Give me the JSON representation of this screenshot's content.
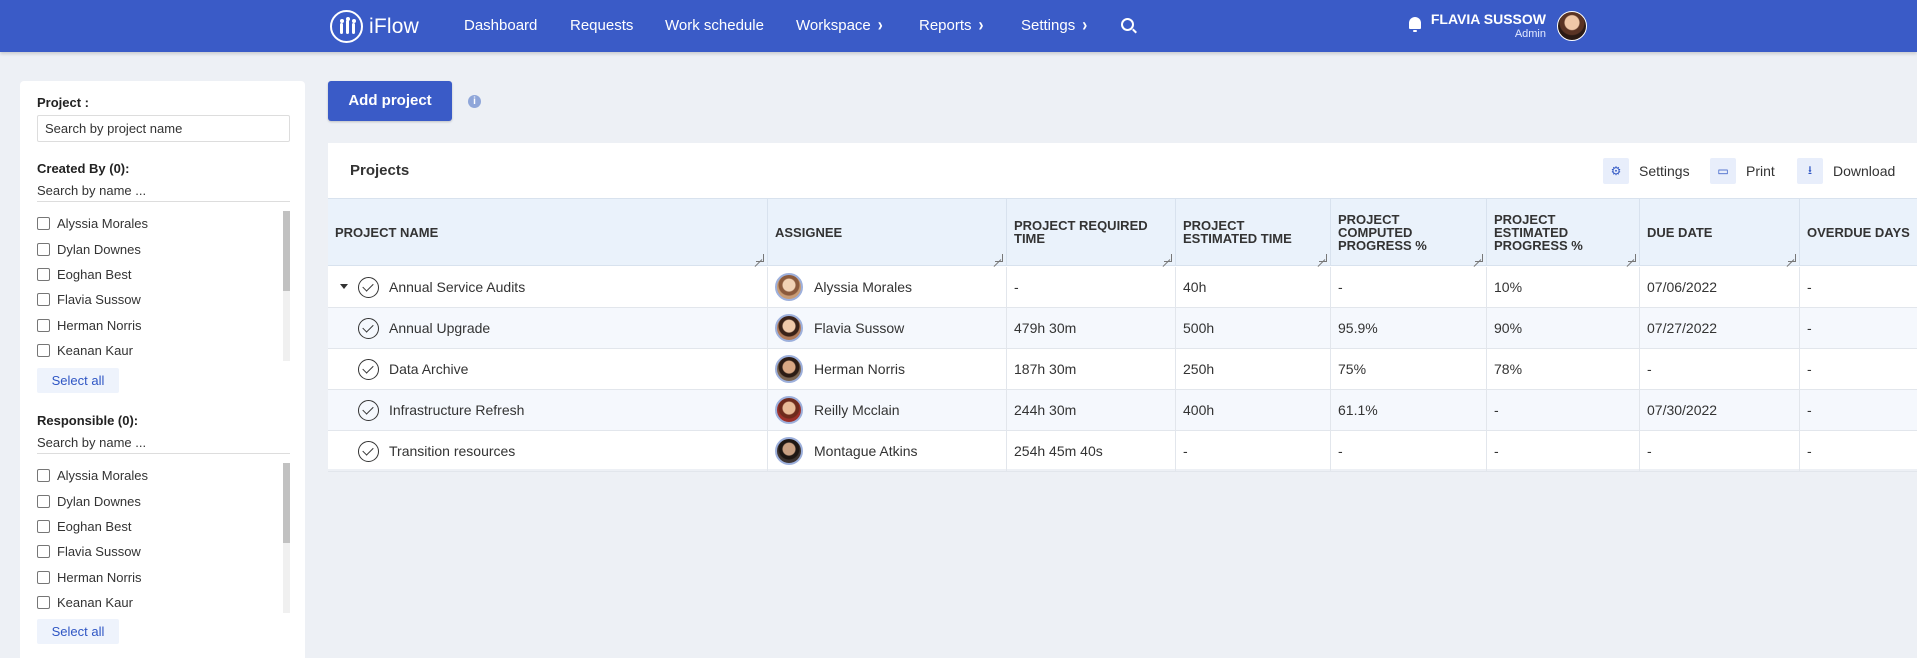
{
  "app": {
    "brand": "iFlow"
  },
  "nav": {
    "items": [
      {
        "label": "Dashboard",
        "has_menu": false
      },
      {
        "label": "Requests",
        "has_menu": false
      },
      {
        "label": "Work schedule",
        "has_menu": false
      },
      {
        "label": "Workspace",
        "has_menu": true
      },
      {
        "label": "Reports",
        "has_menu": true
      },
      {
        "label": "Settings",
        "has_menu": true
      }
    ],
    "chevron": "›"
  },
  "user": {
    "name": "FLAVIA SUSSOW",
    "role": "Admin"
  },
  "filters": {
    "project": {
      "label": "Project :",
      "placeholder": "Search by project name"
    },
    "created_by": {
      "label": "Created By (0):",
      "search_placeholder": "Search by name ...",
      "people": [
        "Alyssia Morales",
        "Dylan Downes",
        "Eoghan Best",
        "Flavia Sussow",
        "Herman Norris",
        "Keanan Kaur"
      ],
      "select_all": "Select all"
    },
    "responsible": {
      "label": "Responsible (0):",
      "search_placeholder": "Search by name ...",
      "people": [
        "Alyssia Morales",
        "Dylan Downes",
        "Eoghan Best",
        "Flavia Sussow",
        "Herman Norris",
        "Keanan Kaur"
      ],
      "select_all": "Select all"
    }
  },
  "main": {
    "add_button": "Add project",
    "info_icon": "i"
  },
  "projects_panel": {
    "title": "Projects",
    "tools": {
      "settings": "Settings",
      "print": "Print",
      "download": "Download"
    },
    "columns": [
      "PROJECT NAME",
      "ASSIGNEE",
      "PROJECT REQUIRED TIME",
      "PROJECT ESTIMATED TIME",
      "PROJECT COMPUTED PROGRESS %",
      "PROJECT ESTIMATED PROGRESS %",
      "DUE DATE",
      "OVERDUE DAYS"
    ],
    "rows": [
      {
        "name": "Annual Service Audits",
        "assignee": "Alyssia Morales",
        "required": "-",
        "estimated": "40h",
        "computed": "-",
        "est_progress": "10%",
        "due": "07/06/2022",
        "overdue": "-"
      },
      {
        "name": "Annual Upgrade",
        "assignee": "Flavia Sussow",
        "required": "479h 30m",
        "estimated": "500h",
        "computed": "95.9%",
        "est_progress": "90%",
        "due": "07/27/2022",
        "overdue": "-"
      },
      {
        "name": "Data Archive",
        "assignee": "Herman Norris",
        "required": "187h 30m",
        "estimated": "250h",
        "computed": "75%",
        "est_progress": "78%",
        "due": "-",
        "overdue": "-"
      },
      {
        "name": "Infrastructure Refresh",
        "assignee": "Reilly Mcclain",
        "required": "244h 30m",
        "estimated": "400h",
        "computed": "61.1%",
        "est_progress": "-",
        "due": "07/30/2022",
        "overdue": "-"
      },
      {
        "name": "Transition resources",
        "assignee": "Montague Atkins",
        "required": "254h 45m 40s",
        "estimated": "-",
        "computed": "-",
        "est_progress": "-",
        "due": "-",
        "overdue": "-"
      }
    ]
  },
  "colors": {
    "brand": "#3a5bc7",
    "header_bg": "#eaf2fb",
    "page_bg": "#edf0f5"
  }
}
